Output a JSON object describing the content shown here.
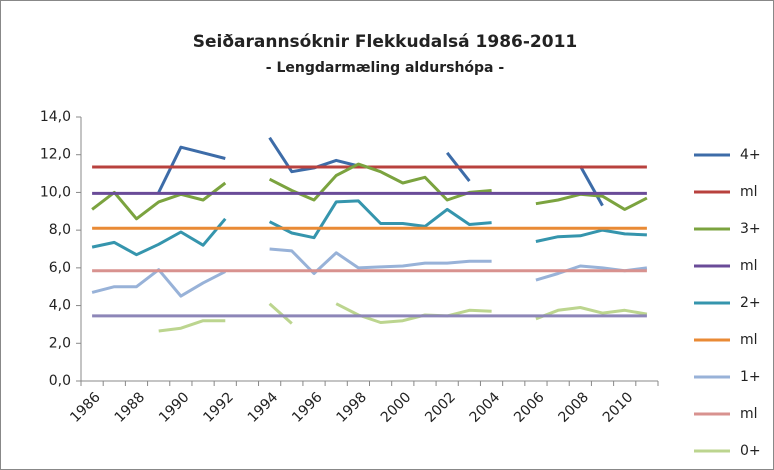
{
  "chart_data": {
    "type": "line",
    "title": "Seiðarannsóknir Flekkudalsá 1986-2011",
    "subtitle": "- Lengdarmæling aldurshópa -",
    "categories": [
      1986,
      null,
      1988,
      null,
      1990,
      null,
      1992,
      null,
      1994,
      null,
      1996,
      null,
      1998,
      null,
      2000,
      null,
      2002,
      null,
      2004,
      null,
      2006,
      null,
      2008,
      null,
      2010,
      null
    ],
    "ylim": [
      0,
      14
    ],
    "yticks": [
      {
        "value": 0,
        "label": "0,0"
      },
      {
        "value": 2,
        "label": "2,0"
      },
      {
        "value": 4,
        "label": "4,0"
      },
      {
        "value": 6,
        "label": "6,0"
      },
      {
        "value": 8,
        "label": "8,0"
      },
      {
        "value": 10,
        "label": "10,0"
      },
      {
        "value": 12,
        "label": "12,0"
      },
      {
        "value": 14,
        "label": "14,0"
      }
    ],
    "legend": "right",
    "series": [
      {
        "name": "4+",
        "color": "#3d6ca8",
        "values": [
          null,
          null,
          null,
          10.0,
          12.4,
          12.1,
          11.8,
          null,
          12.9,
          11.1,
          11.3,
          11.7,
          11.4,
          null,
          null,
          null,
          12.1,
          10.6,
          null,
          null,
          null,
          null,
          11.4,
          9.3,
          null,
          null
        ]
      },
      {
        "name": "ml",
        "color": "#b8413e",
        "values": [
          11.35,
          11.35,
          11.35,
          11.35,
          11.35,
          11.35,
          11.35,
          11.35,
          11.35,
          11.35,
          11.35,
          11.35,
          11.35,
          11.35,
          11.35,
          11.35,
          11.35,
          11.35,
          11.35,
          11.35,
          11.35,
          11.35,
          11.35,
          11.35,
          11.35,
          11.35
        ]
      },
      {
        "name": "3+",
        "color": "#7ba33f",
        "values": [
          9.1,
          10.0,
          8.6,
          9.5,
          9.9,
          9.6,
          10.5,
          null,
          10.7,
          10.1,
          9.6,
          10.9,
          11.5,
          11.1,
          10.5,
          10.8,
          9.6,
          10.0,
          10.1,
          null,
          9.4,
          9.6,
          9.9,
          9.8,
          9.1,
          9.7
        ]
      },
      {
        "name": "ml",
        "color": "#6a4b98",
        "values": [
          9.95,
          9.95,
          9.95,
          9.95,
          9.95,
          9.95,
          9.95,
          9.95,
          9.95,
          9.95,
          9.95,
          9.95,
          9.95,
          9.95,
          9.95,
          9.95,
          9.95,
          9.95,
          9.95,
          9.95,
          9.95,
          9.95,
          9.95,
          9.95,
          9.95,
          9.95
        ]
      },
      {
        "name": "2+",
        "color": "#3595ad",
        "values": [
          7.1,
          7.35,
          6.7,
          7.25,
          7.9,
          7.2,
          8.6,
          null,
          8.45,
          7.85,
          7.6,
          9.5,
          9.55,
          8.35,
          8.35,
          8.2,
          9.1,
          8.3,
          8.4,
          null,
          7.4,
          7.65,
          7.7,
          8.0,
          7.8,
          7.75
        ]
      },
      {
        "name": "ml",
        "color": "#e98a35",
        "values": [
          8.1,
          8.1,
          8.1,
          8.1,
          8.1,
          8.1,
          8.1,
          8.1,
          8.1,
          8.1,
          8.1,
          8.1,
          8.1,
          8.1,
          8.1,
          8.1,
          8.1,
          8.1,
          8.1,
          8.1,
          8.1,
          8.1,
          8.1,
          8.1,
          8.1,
          8.1
        ]
      },
      {
        "name": "1+",
        "color": "#98b2d8",
        "values": [
          4.7,
          5.0,
          5.0,
          5.9,
          4.5,
          5.2,
          5.8,
          null,
          7.0,
          6.9,
          5.7,
          6.8,
          6.0,
          6.05,
          6.1,
          6.25,
          6.25,
          6.35,
          6.35,
          null,
          5.35,
          5.7,
          6.1,
          6.0,
          5.85,
          6.0
        ]
      },
      {
        "name": "ml",
        "color": "#d8928f",
        "values": [
          5.85,
          5.85,
          5.85,
          5.85,
          5.85,
          5.85,
          5.85,
          5.85,
          5.85,
          5.85,
          5.85,
          5.85,
          5.85,
          5.85,
          5.85,
          5.85,
          5.85,
          5.85,
          5.85,
          5.85,
          5.85,
          5.85,
          5.85,
          5.85,
          5.85,
          5.85
        ]
      },
      {
        "name": "0+",
        "color": "#bcd58f",
        "values": [
          null,
          null,
          null,
          2.65,
          2.8,
          3.2,
          3.2,
          null,
          4.1,
          3.05,
          null,
          4.1,
          3.5,
          3.1,
          3.2,
          3.5,
          3.45,
          3.75,
          3.7,
          null,
          3.3,
          3.75,
          3.9,
          3.6,
          3.75,
          3.55
        ]
      },
      {
        "name": null,
        "color": "#8d86b8",
        "values": [
          3.45,
          3.45,
          3.45,
          3.45,
          3.45,
          3.45,
          3.45,
          3.45,
          3.45,
          3.45,
          3.45,
          3.45,
          3.45,
          3.45,
          3.45,
          3.45,
          3.45,
          3.45,
          3.45,
          3.45,
          3.45,
          3.45,
          3.45,
          3.45,
          3.45,
          3.45
        ]
      }
    ]
  }
}
